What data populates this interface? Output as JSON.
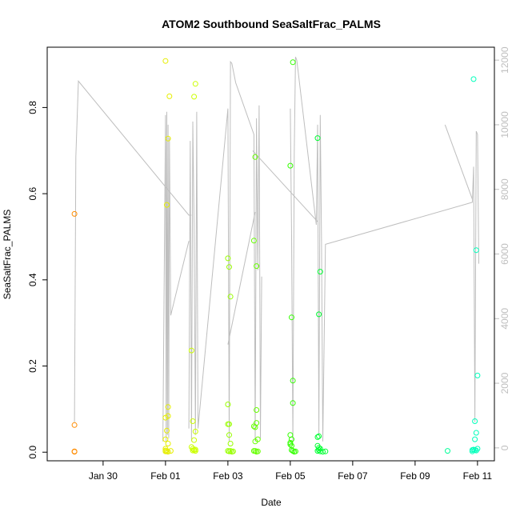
{
  "chart_data": {
    "type": "scatter",
    "title": "ATOM2 Southbound SeaSaltFrac_PALMS",
    "xlabel": "Date",
    "ylabel": "SeaSaltFrac_PALMS",
    "xlim": [
      "2017-01-28T05:00",
      "2017-02-11T13:00"
    ],
    "ylim": [
      -0.02,
      0.94
    ],
    "y2lim": [
      -400,
      12400
    ],
    "x_ticks": [
      {
        "date": "2017-01-30",
        "label": "Jan 30"
      },
      {
        "date": "2017-02-01",
        "label": "Feb 01"
      },
      {
        "date": "2017-02-03",
        "label": "Feb 03"
      },
      {
        "date": "2017-02-05",
        "label": "Feb 05"
      },
      {
        "date": "2017-02-07",
        "label": "Feb 07"
      },
      {
        "date": "2017-02-09",
        "label": "Feb 09"
      },
      {
        "date": "2017-02-11",
        "label": "Feb 11"
      }
    ],
    "y_ticks": [
      0.0,
      0.2,
      0.4,
      0.6,
      0.8
    ],
    "y_tick_labels": [
      "0.0",
      "0.2",
      "0.4",
      "0.6",
      "0.8"
    ],
    "y2_ticks": [
      0,
      2000,
      4000,
      6000,
      8000,
      10000,
      12000
    ],
    "y2_tick_labels": [
      "0",
      "2000",
      "4000",
      "6000",
      "8000",
      "10000",
      "12000"
    ],
    "grid": false,
    "colors": {
      "line": "#bebebe",
      "axis": "#000000",
      "right_axis": "#bebebe"
    },
    "series": [
      {
        "kind": "points",
        "color": "#ff8c00",
        "points": [
          [
            "2017-01-29T02:00",
            0.553
          ],
          [
            "2017-01-29T02:00",
            0.063
          ],
          [
            "2017-01-29T02:00",
            0.002
          ],
          [
            "2017-01-29T02:00",
            0.001
          ]
        ]
      },
      {
        "kind": "points",
        "color": "#e6ee00",
        "points": [
          [
            "2017-02-01T00:00",
            0.908
          ],
          [
            "2017-02-01T00:00",
            0.08
          ],
          [
            "2017-02-01T00:00",
            0.03
          ],
          [
            "2017-02-01T00:00",
            0.008
          ],
          [
            "2017-02-01T00:00",
            0.004
          ],
          [
            "2017-02-01T00:00",
            0.002
          ],
          [
            "2017-02-01T01:00",
            0.574
          ],
          [
            "2017-02-01T01:00",
            0.05
          ],
          [
            "2017-02-01T01:00",
            0.002
          ],
          [
            "2017-02-01T02:00",
            0.728
          ],
          [
            "2017-02-01T02:00",
            0.105
          ],
          [
            "2017-02-01T02:00",
            0.084
          ],
          [
            "2017-02-01T02:00",
            0.02
          ],
          [
            "2017-02-01T02:00",
            0.001
          ],
          [
            "2017-02-01T03:00",
            0.826
          ],
          [
            "2017-02-01T04:00",
            0.003
          ]
        ]
      },
      {
        "kind": "points",
        "color": "#ccff00",
        "points": [
          [
            "2017-02-01T20:00",
            0.236
          ],
          [
            "2017-02-01T20:00",
            0.012
          ],
          [
            "2017-02-01T21:00",
            0.072
          ],
          [
            "2017-02-01T21:00",
            0.008
          ],
          [
            "2017-02-01T21:00",
            0.004
          ],
          [
            "2017-02-01T22:00",
            0.825
          ],
          [
            "2017-02-01T22:00",
            0.028
          ],
          [
            "2017-02-01T22:00",
            0.005
          ],
          [
            "2017-02-01T23:00",
            0.855
          ],
          [
            "2017-02-01T23:00",
            0.048
          ],
          [
            "2017-02-01T23:00",
            0.006
          ],
          [
            "2017-02-01T23:00",
            0.003
          ]
        ]
      },
      {
        "kind": "points",
        "color": "#99ff00",
        "points": [
          [
            "2017-02-03T00:00",
            0.45
          ],
          [
            "2017-02-03T00:00",
            0.111
          ],
          [
            "2017-02-03T00:00",
            0.065
          ],
          [
            "2017-02-03T00:00",
            0.003
          ],
          [
            "2017-02-03T01:00",
            0.43
          ],
          [
            "2017-02-03T01:00",
            0.065
          ],
          [
            "2017-02-03T01:00",
            0.04
          ],
          [
            "2017-02-03T01:00",
            0.002
          ],
          [
            "2017-02-03T02:00",
            0.361
          ],
          [
            "2017-02-03T02:00",
            0.02
          ],
          [
            "2017-02-03T02:00",
            0.003
          ],
          [
            "2017-02-03T03:00",
            0.001
          ],
          [
            "2017-02-03T04:00",
            0.002
          ]
        ]
      },
      {
        "kind": "points",
        "color": "#66ff00",
        "points": [
          [
            "2017-02-03T20:00",
            0.491
          ],
          [
            "2017-02-03T20:00",
            0.06
          ],
          [
            "2017-02-03T20:00",
            0.003
          ],
          [
            "2017-02-03T21:00",
            0.685
          ],
          [
            "2017-02-03T21:00",
            0.058
          ],
          [
            "2017-02-03T21:00",
            0.025
          ],
          [
            "2017-02-03T21:00",
            0.003
          ],
          [
            "2017-02-03T22:00",
            0.432
          ],
          [
            "2017-02-03T22:00",
            0.098
          ],
          [
            "2017-02-03T22:00",
            0.068
          ],
          [
            "2017-02-03T22:00",
            0.001
          ],
          [
            "2017-02-03T23:00",
            0.03
          ],
          [
            "2017-02-03T23:00",
            0.002
          ]
        ]
      },
      {
        "kind": "points",
        "color": "#33ff00",
        "points": [
          [
            "2017-02-05T00:00",
            0.665
          ],
          [
            "2017-02-05T00:00",
            0.04
          ],
          [
            "2017-02-05T00:00",
            0.022
          ],
          [
            "2017-02-05T00:00",
            0.018
          ],
          [
            "2017-02-05T01:00",
            0.313
          ],
          [
            "2017-02-05T01:00",
            0.03
          ],
          [
            "2017-02-05T01:00",
            0.015
          ],
          [
            "2017-02-05T01:00",
            0.005
          ],
          [
            "2017-02-05T02:00",
            0.905
          ],
          [
            "2017-02-05T02:00",
            0.166
          ],
          [
            "2017-02-05T02:00",
            0.114
          ],
          [
            "2017-02-05T02:00",
            0.003
          ],
          [
            "2017-02-05T03:00",
            0.001
          ],
          [
            "2017-02-05T04:00",
            0.002
          ]
        ]
      },
      {
        "kind": "points",
        "color": "#00ff33",
        "points": [
          [
            "2017-02-05T21:00",
            0.729
          ],
          [
            "2017-02-05T21:00",
            0.035
          ],
          [
            "2017-02-05T21:00",
            0.015
          ],
          [
            "2017-02-05T21:00",
            0.003
          ],
          [
            "2017-02-05T22:00",
            0.32
          ],
          [
            "2017-02-05T22:00",
            0.037
          ],
          [
            "2017-02-05T22:00",
            0.01
          ],
          [
            "2017-02-05T22:00",
            0.005
          ],
          [
            "2017-02-05T23:00",
            0.419
          ],
          [
            "2017-02-05T23:00",
            0.008
          ],
          [
            "2017-02-05T23:00",
            0.002
          ],
          [
            "2017-02-06T01:00",
            0.001
          ],
          [
            "2017-02-06T03:00",
            0.002
          ]
        ]
      },
      {
        "kind": "points",
        "color": "#00ff99",
        "points": [
          [
            "2017-02-10T01:00",
            0.003
          ]
        ]
      },
      {
        "kind": "points",
        "color": "#00ffbb",
        "points": [
          [
            "2017-02-10T21:00",
            0.866
          ],
          [
            "2017-02-10T21:00",
            0.006
          ],
          [
            "2017-02-10T22:00",
            0.072
          ],
          [
            "2017-02-10T22:00",
            0.03
          ],
          [
            "2017-02-10T22:00",
            0.005
          ],
          [
            "2017-02-10T23:00",
            0.469
          ],
          [
            "2017-02-10T23:00",
            0.045
          ],
          [
            "2017-02-10T23:00",
            0.004
          ],
          [
            "2017-02-11T00:00",
            0.178
          ],
          [
            "2017-02-11T00:00",
            0.008
          ],
          [
            "2017-02-10T20:00",
            0.005
          ],
          [
            "2017-02-10T20:00",
            0.002
          ]
        ]
      },
      {
        "kind": "line",
        "axis": "right",
        "color": "#bebebe",
        "segments": [
          [
            [
              "2017-01-29T02:00",
              800
            ],
            [
              "2017-01-29T03:00",
              9000
            ],
            [
              "2017-01-29T05:00",
              11350
            ],
            [
              "2017-02-01T18:00",
              7200
            ],
            [
              "2017-02-01T20:00",
              7200
            ]
          ],
          [
            [
              "2017-01-31T22:00",
              200
            ],
            [
              "2017-02-01T00:00",
              10300
            ],
            [
              "2017-02-01T00:30",
              200
            ],
            [
              "2017-02-01T01:00",
              10400
            ],
            [
              "2017-02-01T01:30",
              400
            ],
            [
              "2017-02-01T02:00",
              10000
            ],
            [
              "2017-02-01T02:30",
              300
            ],
            [
              "2017-02-01T03:00",
              9600
            ],
            [
              "2017-02-01T04:00",
              4100
            ],
            [
              "2017-02-01T18:00",
              6400
            ]
          ],
          [
            [
              "2017-02-01T18:00",
              600
            ],
            [
              "2017-02-01T19:00",
              9500
            ],
            [
              "2017-02-01T20:00",
              200
            ],
            [
              "2017-02-01T21:00",
              10100
            ],
            [
              "2017-02-01T22:00",
              6900
            ],
            [
              "2017-02-01T23:00",
              400
            ],
            [
              "2017-02-02T00:00",
              10400
            ],
            [
              "2017-02-02T01:00",
              600
            ],
            [
              "2017-02-03T00:00",
              10500
            ],
            [
              "2017-02-03T01:00",
              200
            ],
            [
              "2017-02-03T02:00",
              11950
            ],
            [
              "2017-02-03T03:00",
              11900
            ],
            [
              "2017-02-03T06:00",
              11300
            ],
            [
              "2017-02-03T20:00",
              9700
            ],
            [
              "2017-02-03T21:00",
              200
            ],
            [
              "2017-02-03T22:00",
              10200
            ],
            [
              "2017-02-03T23:00",
              5500
            ],
            [
              "2017-02-04T00:00",
              10600
            ],
            [
              "2017-02-04T01:00",
              300
            ],
            [
              "2017-02-04T02:00",
              5300
            ]
          ],
          [
            [
              "2017-02-03T00:00",
              3200
            ],
            [
              "2017-02-03T21:00",
              7300
            ]
          ],
          [
            [
              "2017-02-05T00:00",
              10500
            ],
            [
              "2017-02-05T01:00",
              6500
            ],
            [
              "2017-02-05T02:00",
              200
            ],
            [
              "2017-02-05T03:00",
              9100
            ],
            [
              "2017-02-05T04:00",
              12100
            ],
            [
              "2017-02-05T05:00",
              12000
            ],
            [
              "2017-02-05T20:00",
              6900
            ],
            [
              "2017-02-05T21:00",
              10000
            ],
            [
              "2017-02-05T22:00",
              400
            ],
            [
              "2017-02-05T23:00",
              10300
            ],
            [
              "2017-02-06T00:00",
              6400
            ],
            [
              "2017-02-06T01:00",
              200
            ],
            [
              "2017-02-06T03:00",
              6300
            ],
            [
              "2017-02-10T20:00",
              7600
            ],
            [
              "2017-02-10T21:00",
              8700
            ],
            [
              "2017-02-10T22:00",
              800
            ],
            [
              "2017-02-10T23:00",
              9800
            ],
            [
              "2017-02-11T00:00",
              9700
            ],
            [
              "2017-02-11T01:00",
              5700
            ]
          ],
          [
            [
              "2017-02-03T19:00",
              9200
            ],
            [
              "2017-02-05T21:00",
              7000
            ]
          ],
          [
            [
              "2017-02-09T23:00",
              10000
            ],
            [
              "2017-02-10T20:00",
              7700
            ]
          ]
        ]
      }
    ]
  }
}
